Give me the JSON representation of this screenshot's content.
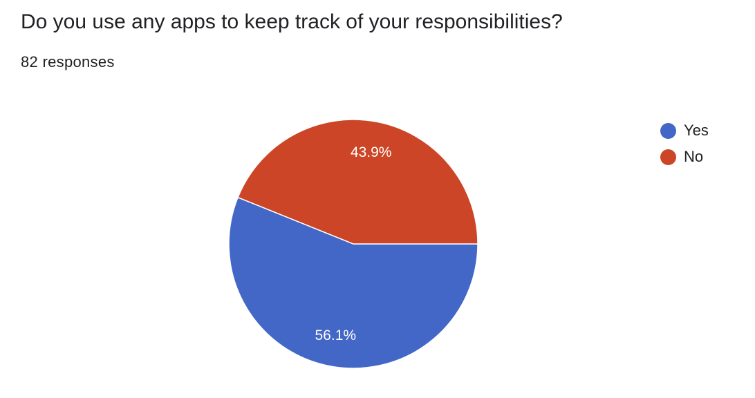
{
  "question": {
    "title": "Do you use any apps to keep track of your responsibilities?",
    "response_count": "82 responses"
  },
  "chart_data": {
    "type": "pie",
    "title": "Do you use any apps to keep track of your responsibilities?",
    "categories": [
      "Yes",
      "No"
    ],
    "values": [
      56.1,
      43.9
    ],
    "labels": [
      "56.1%",
      "43.9%"
    ],
    "colors": [
      "#4267c7",
      "#cc4526"
    ],
    "legend_position": "right"
  }
}
